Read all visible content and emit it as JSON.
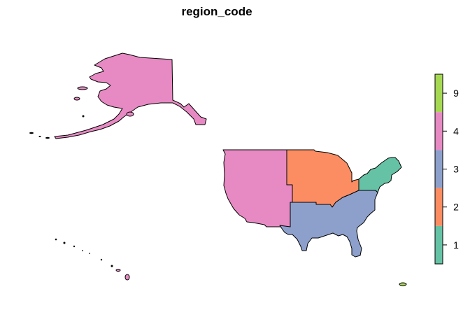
{
  "title": "region_code",
  "legend": {
    "keys": [
      {
        "label": "9",
        "color": "#A6D854"
      },
      {
        "label": "4",
        "color": "#E78AC3"
      },
      {
        "label": "3",
        "color": "#8DA0CB"
      },
      {
        "label": "2",
        "color": "#FC8D62"
      },
      {
        "label": "1",
        "color": "#66C2A5"
      }
    ]
  },
  "regions": [
    {
      "name": "west",
      "code": "4"
    },
    {
      "name": "midwest",
      "code": "2"
    },
    {
      "name": "northeast",
      "code": "1"
    },
    {
      "name": "south",
      "code": "3"
    },
    {
      "name": "alaska",
      "code": "4"
    },
    {
      "name": "hawaii",
      "code": "4"
    },
    {
      "name": "puerto-rico",
      "code": "9"
    }
  ]
}
